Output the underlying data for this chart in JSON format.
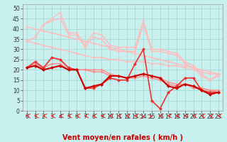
{
  "xlabel": "Vent moyen/en rafales ( km/h )",
  "bg_color": "#c8f0ee",
  "grid_color": "#aad8d4",
  "xlim": [
    -0.5,
    23.5
  ],
  "ylim": [
    0,
    52
  ],
  "xticks": [
    0,
    1,
    2,
    3,
    4,
    5,
    6,
    7,
    8,
    9,
    10,
    11,
    12,
    13,
    14,
    15,
    16,
    17,
    18,
    19,
    20,
    21,
    22,
    23
  ],
  "yticks": [
    0,
    5,
    10,
    15,
    20,
    25,
    30,
    35,
    40,
    45,
    50
  ],
  "series": [
    {
      "name": "upper_envelope1",
      "color": "#ffbbbb",
      "lw": 1.0,
      "marker": "D",
      "ms": 2.0,
      "y": [
        34,
        36,
        42,
        45,
        48,
        38,
        38,
        32,
        38,
        37,
        32,
        31,
        31,
        31,
        44,
        30,
        30,
        29,
        28,
        24,
        22,
        18,
        15,
        18
      ]
    },
    {
      "name": "upper_envelope2",
      "color": "#ffbbbb",
      "lw": 1.0,
      "marker": "D",
      "ms": 2.0,
      "y": [
        34,
        36,
        42,
        44,
        45,
        37,
        37,
        31,
        36,
        35,
        30,
        29,
        29,
        29,
        42,
        29,
        29,
        28,
        27,
        23,
        21,
        17,
        15,
        17
      ]
    },
    {
      "name": "trend_upper",
      "color": "#ffbbbb",
      "lw": 1.0,
      "marker": "D",
      "ms": 2.0,
      "y": [
        41,
        40,
        39,
        38,
        37,
        36,
        35,
        34,
        33,
        32,
        31,
        30,
        29,
        28,
        27,
        26,
        25,
        24,
        23,
        22,
        21,
        20,
        19,
        18
      ]
    },
    {
      "name": "trend_lower",
      "color": "#ffbbbb",
      "lw": 1.0,
      "marker": "D",
      "ms": 2.0,
      "y": [
        34,
        33,
        32,
        31,
        30,
        29,
        28,
        27,
        26,
        26,
        25,
        25,
        24,
        24,
        24,
        23,
        23,
        22,
        22,
        21,
        20,
        19,
        18,
        18
      ]
    },
    {
      "name": "mid_pink1",
      "color": "#ff8888",
      "lw": 1.0,
      "marker": "D",
      "ms": 2.0,
      "y": [
        21,
        23,
        21,
        26,
        25,
        21,
        20,
        20,
        20,
        20,
        18,
        17,
        16,
        17,
        18,
        17,
        16,
        14,
        13,
        13,
        12,
        11,
        10,
        10
      ]
    },
    {
      "name": "mid_pink2",
      "color": "#ff8888",
      "lw": 1.0,
      "marker": "D",
      "ms": 2.0,
      "y": [
        21,
        22,
        21,
        23,
        23,
        20,
        20,
        20,
        19,
        19,
        17,
        17,
        16,
        16,
        17,
        16,
        15,
        13,
        12,
        13,
        11,
        11,
        10,
        9
      ]
    },
    {
      "name": "red_volatile",
      "color": "#ee3333",
      "lw": 1.2,
      "marker": "D",
      "ms": 2.5,
      "y": [
        21,
        24,
        21,
        26,
        25,
        21,
        20,
        11,
        11,
        13,
        16,
        15,
        15,
        23,
        30,
        5,
        1,
        9,
        12,
        16,
        16,
        10,
        9,
        9
      ]
    },
    {
      "name": "red_main",
      "color": "#cc0000",
      "lw": 1.5,
      "marker": "D",
      "ms": 2.5,
      "y": [
        21,
        22,
        20,
        21,
        22,
        20,
        20,
        11,
        12,
        13,
        17,
        17,
        16,
        17,
        18,
        17,
        16,
        12,
        11,
        13,
        12,
        10,
        8,
        9
      ]
    }
  ],
  "arrow_color": "#dd2222",
  "arrow_directions": [
    "left",
    "left",
    "left",
    "left",
    "left",
    "left",
    "left",
    "left",
    "left",
    "left",
    "left",
    "left",
    "left",
    "left",
    "right_up",
    "up_right",
    "left",
    "left",
    "left",
    "left",
    "left",
    "left",
    "left",
    "left"
  ],
  "xlabel_color": "#cc0000",
  "xlabel_fontsize": 7,
  "tick_fontsize": 5.5
}
